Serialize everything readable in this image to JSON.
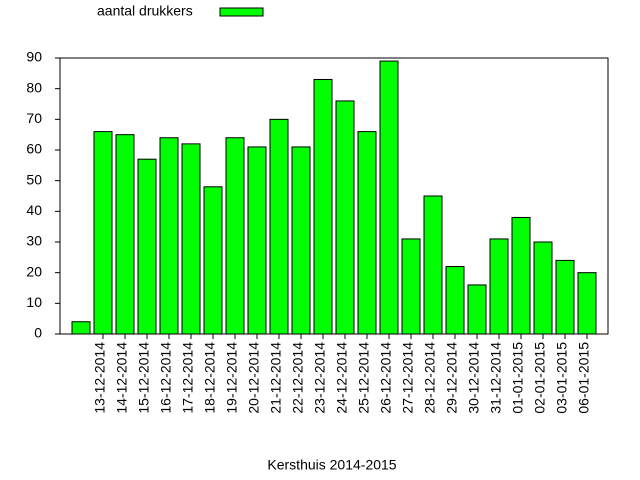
{
  "chart_data": {
    "type": "bar",
    "legend": "aantal drukkers",
    "xlabel": "Kersthuis 2014-2015",
    "categories": [
      null,
      "13-12-2014",
      "14-12-2014",
      "15-12-2014",
      "16-12-2014",
      "17-12-2014",
      "18-12-2014",
      "19-12-2014",
      "20-12-2014",
      "21-12-2014",
      "22-12-2014",
      "23-12-2014",
      "24-12-2014",
      "25-12-2014",
      "26-12-2014",
      "27-12-2014",
      "28-12-2014",
      "29-12-2014",
      "30-12-2014",
      "31-12-2014",
      "01-01-2015",
      "02-01-2015",
      "03-01-2015",
      "06-01-2015"
    ],
    "values": [
      4,
      66,
      65,
      57,
      64,
      62,
      48,
      64,
      61,
      70,
      61,
      83,
      76,
      66,
      89,
      31,
      45,
      22,
      16,
      31,
      38,
      30,
      24,
      20
    ],
    "color": "#00ff00",
    "ylim": [
      0,
      90
    ],
    "yticks": [
      0,
      10,
      20,
      30,
      40,
      50,
      60,
      70,
      80,
      90
    ]
  }
}
